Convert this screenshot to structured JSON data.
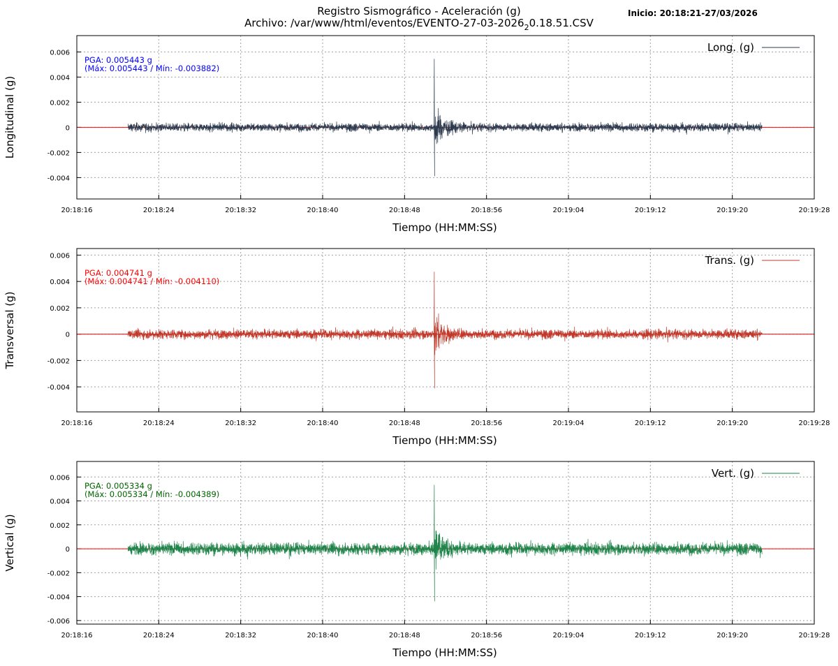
{
  "chart_data": {
    "type": "line",
    "title": "Registro Sismográfico - Aceleración (g)",
    "file_label": "Archivo: /var/www/html/eventos/EVENTO-27-03-2026",
    "file_subscript": "2",
    "file_suffix": "0.18.51.CSV",
    "start_label": "Inicio: 20:18:21-27/03/2026",
    "x_ticks": [
      "20:18:16",
      "20:18:24",
      "20:18:32",
      "20:18:40",
      "20:18:48",
      "20:18:56",
      "20:19:04",
      "20:19:12",
      "20:19:20",
      "20:19:28"
    ],
    "x_range_seconds": [
      0,
      72
    ],
    "data_start_seconds": 5,
    "data_end_seconds": 66.9,
    "event_seconds": 34.9,
    "xlabel": "Tiempo (HH:MM:SS)",
    "grid": true,
    "legend_position": "top-right",
    "panels": [
      {
        "name": "Long. (g)",
        "ylabel": "Longitudinal (g)",
        "color": "#2b3a4e",
        "annot_color": "#0000ff",
        "pga_label": "PGA: 0.005443 g",
        "range_label": "(Máx: 0.005443 / Mín: -0.003882)",
        "max": 0.005443,
        "min": -0.003882,
        "noise": 0.00045,
        "ylim": [
          -0.0057,
          0.0073
        ],
        "y_ticks": [
          "0.006",
          "0.004",
          "0.002",
          "0",
          "-0.002",
          "-0.004"
        ],
        "y_tick_values": [
          0.006,
          0.004,
          0.002,
          0,
          -0.002,
          -0.004
        ]
      },
      {
        "name": "Trans. (g)",
        "ylabel": "Transversal (g)",
        "color": "#c0392b",
        "annot_color": "#ff0000",
        "pga_label": "PGA: 0.004741 g",
        "range_label": "(Máx: 0.004741 / Mín: -0.004110)",
        "max": 0.004741,
        "min": -0.00411,
        "noise": 0.0005,
        "ylim": [
          -0.0059,
          0.0065
        ],
        "y_ticks": [
          "0.006",
          "0.004",
          "0.002",
          "0",
          "-0.002",
          "-0.004"
        ],
        "y_tick_values": [
          0.006,
          0.004,
          0.002,
          0,
          -0.002,
          -0.004
        ]
      },
      {
        "name": "Vert. (g)",
        "ylabel": "Vertical (g)",
        "color": "#1e8449",
        "annot_color": "#006400",
        "pga_label": "PGA: 0.005334 g",
        "range_label": "(Máx: 0.005334 / Mín: -0.004389)",
        "max": 0.005334,
        "min": -0.004389,
        "noise": 0.0007,
        "ylim": [
          -0.0063,
          0.0073
        ],
        "y_ticks": [
          "0.006",
          "0.004",
          "0.002",
          "0",
          "-0.002",
          "-0.004",
          "-0.006"
        ],
        "y_tick_values": [
          0.006,
          0.004,
          0.002,
          0,
          -0.002,
          -0.004,
          -0.006
        ]
      }
    ]
  }
}
